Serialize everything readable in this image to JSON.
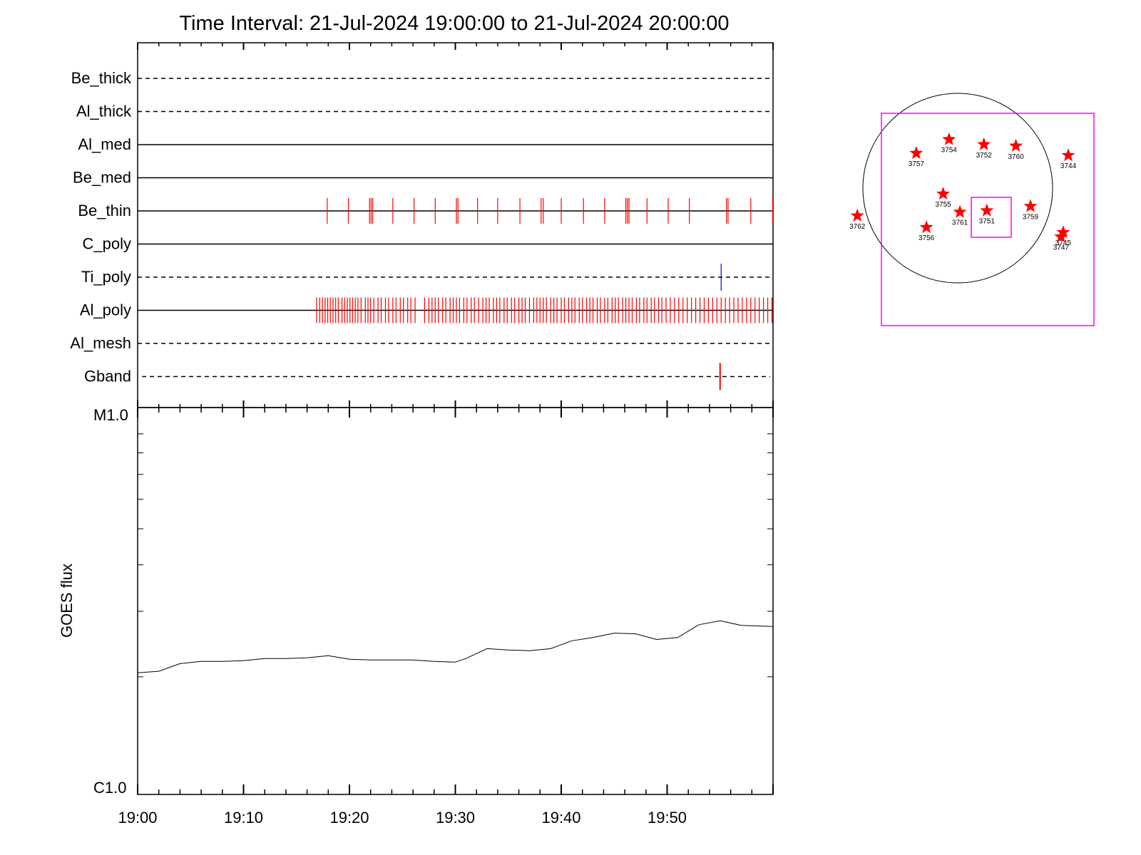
{
  "chart_data": [
    {
      "type": "event timeline",
      "title": "Time Interval: 21-Jul-2024 19:00:00 to 21-Jul-2024 20:00:00",
      "x_range": [
        "19:00",
        "20:00"
      ],
      "tracks": [
        {
          "name": "Be_thick",
          "style": "dashed",
          "events": []
        },
        {
          "name": "Al_thick",
          "style": "dashed",
          "events": []
        },
        {
          "name": "Al_med",
          "style": "solid",
          "events": []
        },
        {
          "name": "Be_med",
          "style": "solid",
          "events": []
        },
        {
          "name": "Be_thin",
          "style": "solid",
          "color": "#ff0000",
          "events": [
            17.9,
            19.9,
            21.9,
            22.05,
            22.2,
            24.1,
            26.1,
            28.1,
            30.1,
            30.25,
            32.1,
            34.0,
            36.1,
            38.1,
            38.3,
            40.0,
            42.1,
            44.1,
            46.1,
            46.25,
            46.4,
            48.1,
            50.1,
            52.1,
            55.6,
            55.75,
            57.9,
            60.0
          ]
        },
        {
          "name": "C_poly",
          "style": "solid",
          "events": []
        },
        {
          "name": "Ti_poly",
          "style": "dashed",
          "color": "#0000ff",
          "events": [
            55.1
          ]
        },
        {
          "name": "Al_poly",
          "style": "solid",
          "color": "#ff0000",
          "events": [
            16.9,
            17.2,
            17.45,
            17.7,
            17.95,
            18.2,
            18.45,
            18.7,
            18.95,
            19.3,
            19.55,
            19.8,
            20.05,
            20.3,
            20.55,
            20.8,
            21.1,
            21.5,
            21.75,
            22.0,
            22.3,
            22.7,
            23.0,
            23.4,
            23.7,
            24.1,
            24.4,
            24.8,
            25.1,
            25.5,
            25.8,
            26.2,
            27.1,
            27.5,
            27.8,
            28.1,
            28.4,
            28.8,
            29.1,
            29.5,
            29.8,
            30.1,
            30.4,
            30.8,
            31.1,
            31.5,
            31.8,
            32.2,
            32.6,
            32.9,
            33.2,
            33.6,
            33.9,
            34.2,
            34.6,
            34.9,
            35.3,
            35.6,
            36.0,
            36.3,
            36.6,
            37.0,
            37.4,
            37.7,
            38.0,
            38.3,
            38.6,
            39.0,
            39.3,
            39.6,
            40.0,
            40.3,
            40.7,
            41.0,
            41.3,
            41.7,
            42.0,
            42.4,
            42.7,
            43.0,
            43.4,
            43.7,
            44.1,
            44.4,
            44.8,
            45.1,
            45.4,
            45.8,
            46.1,
            46.4,
            46.7,
            47.1,
            47.4,
            47.8,
            48.1,
            48.5,
            48.8,
            49.2,
            49.5,
            49.9,
            50.3,
            50.7,
            51.1,
            51.5,
            51.9,
            52.3,
            52.7,
            53.1,
            53.5,
            53.9,
            54.3,
            54.7,
            55.1,
            55.5,
            55.9,
            56.3,
            56.7,
            57.1,
            57.5,
            57.9,
            58.3,
            58.7,
            59.1,
            59.5,
            59.9
          ]
        },
        {
          "name": "Al_mesh",
          "style": "dashed",
          "events": []
        },
        {
          "name": "Gband",
          "style": "dashed",
          "color": "#ff0000",
          "events": [
            55.0
          ]
        }
      ]
    },
    {
      "type": "line",
      "ylabel": "GOES flux",
      "y_scale": "log",
      "y_ticklabels": [
        "C1.0",
        "M1.0"
      ],
      "ylim": [
        "C1.0",
        "M1.0"
      ],
      "x_ticklabels": [
        "19:00",
        "19:10",
        "19:20",
        "19:30",
        "19:40",
        "19:50"
      ],
      "x_range": [
        "19:00",
        "20:00"
      ],
      "series": [
        {
          "color": "#000000",
          "x": [
            0,
            2,
            4,
            6,
            8,
            10,
            12,
            14,
            16,
            18,
            20,
            22,
            24,
            26,
            28,
            30,
            31,
            33,
            35,
            37,
            39,
            41,
            43,
            45,
            47,
            49,
            51,
            53,
            55,
            57,
            60
          ],
          "y": [
            2.05e-06,
            2.07e-06,
            2.17e-06,
            2.2e-06,
            2.2e-06,
            2.21e-06,
            2.24e-06,
            2.24e-06,
            2.25e-06,
            2.28e-06,
            2.23e-06,
            2.22e-06,
            2.22e-06,
            2.22e-06,
            2.2e-06,
            2.19e-06,
            2.24e-06,
            2.38e-06,
            2.36e-06,
            2.35e-06,
            2.38e-06,
            2.5e-06,
            2.55e-06,
            2.62e-06,
            2.61e-06,
            2.52e-06,
            2.55e-06,
            2.76e-06,
            2.83e-06,
            2.75e-06,
            2.73e-06
          ]
        }
      ]
    },
    {
      "type": "scatter",
      "title": "",
      "points": [
        {
          "label": "3754",
          "x": -12,
          "y": 67
        },
        {
          "label": "3752",
          "x": 36,
          "y": 60
        },
        {
          "label": "3760",
          "x": 80,
          "y": 58
        },
        {
          "label": "3757",
          "x": -57,
          "y": 48
        },
        {
          "label": "3744",
          "x": 152,
          "y": 45
        },
        {
          "label": "3755",
          "x": -20,
          "y": -8
        },
        {
          "label": "3759",
          "x": 100,
          "y": -25
        },
        {
          "label": "3751",
          "x": 40,
          "y": -31
        },
        {
          "label": "3761",
          "x": 3,
          "y": -33
        },
        {
          "label": "3762",
          "x": -138,
          "y": -38
        },
        {
          "label": "3756",
          "x": -43,
          "y": -54
        },
        {
          "label": "3745",
          "x": 145,
          "y": -61
        },
        {
          "label": "3747",
          "x": 142,
          "y": -67
        }
      ]
    }
  ],
  "colors": {
    "event": "#ff0000",
    "ti_event": "#0000ff",
    "box": "#ff00ff",
    "marker": "#ff0000",
    "axis": "#000000"
  }
}
